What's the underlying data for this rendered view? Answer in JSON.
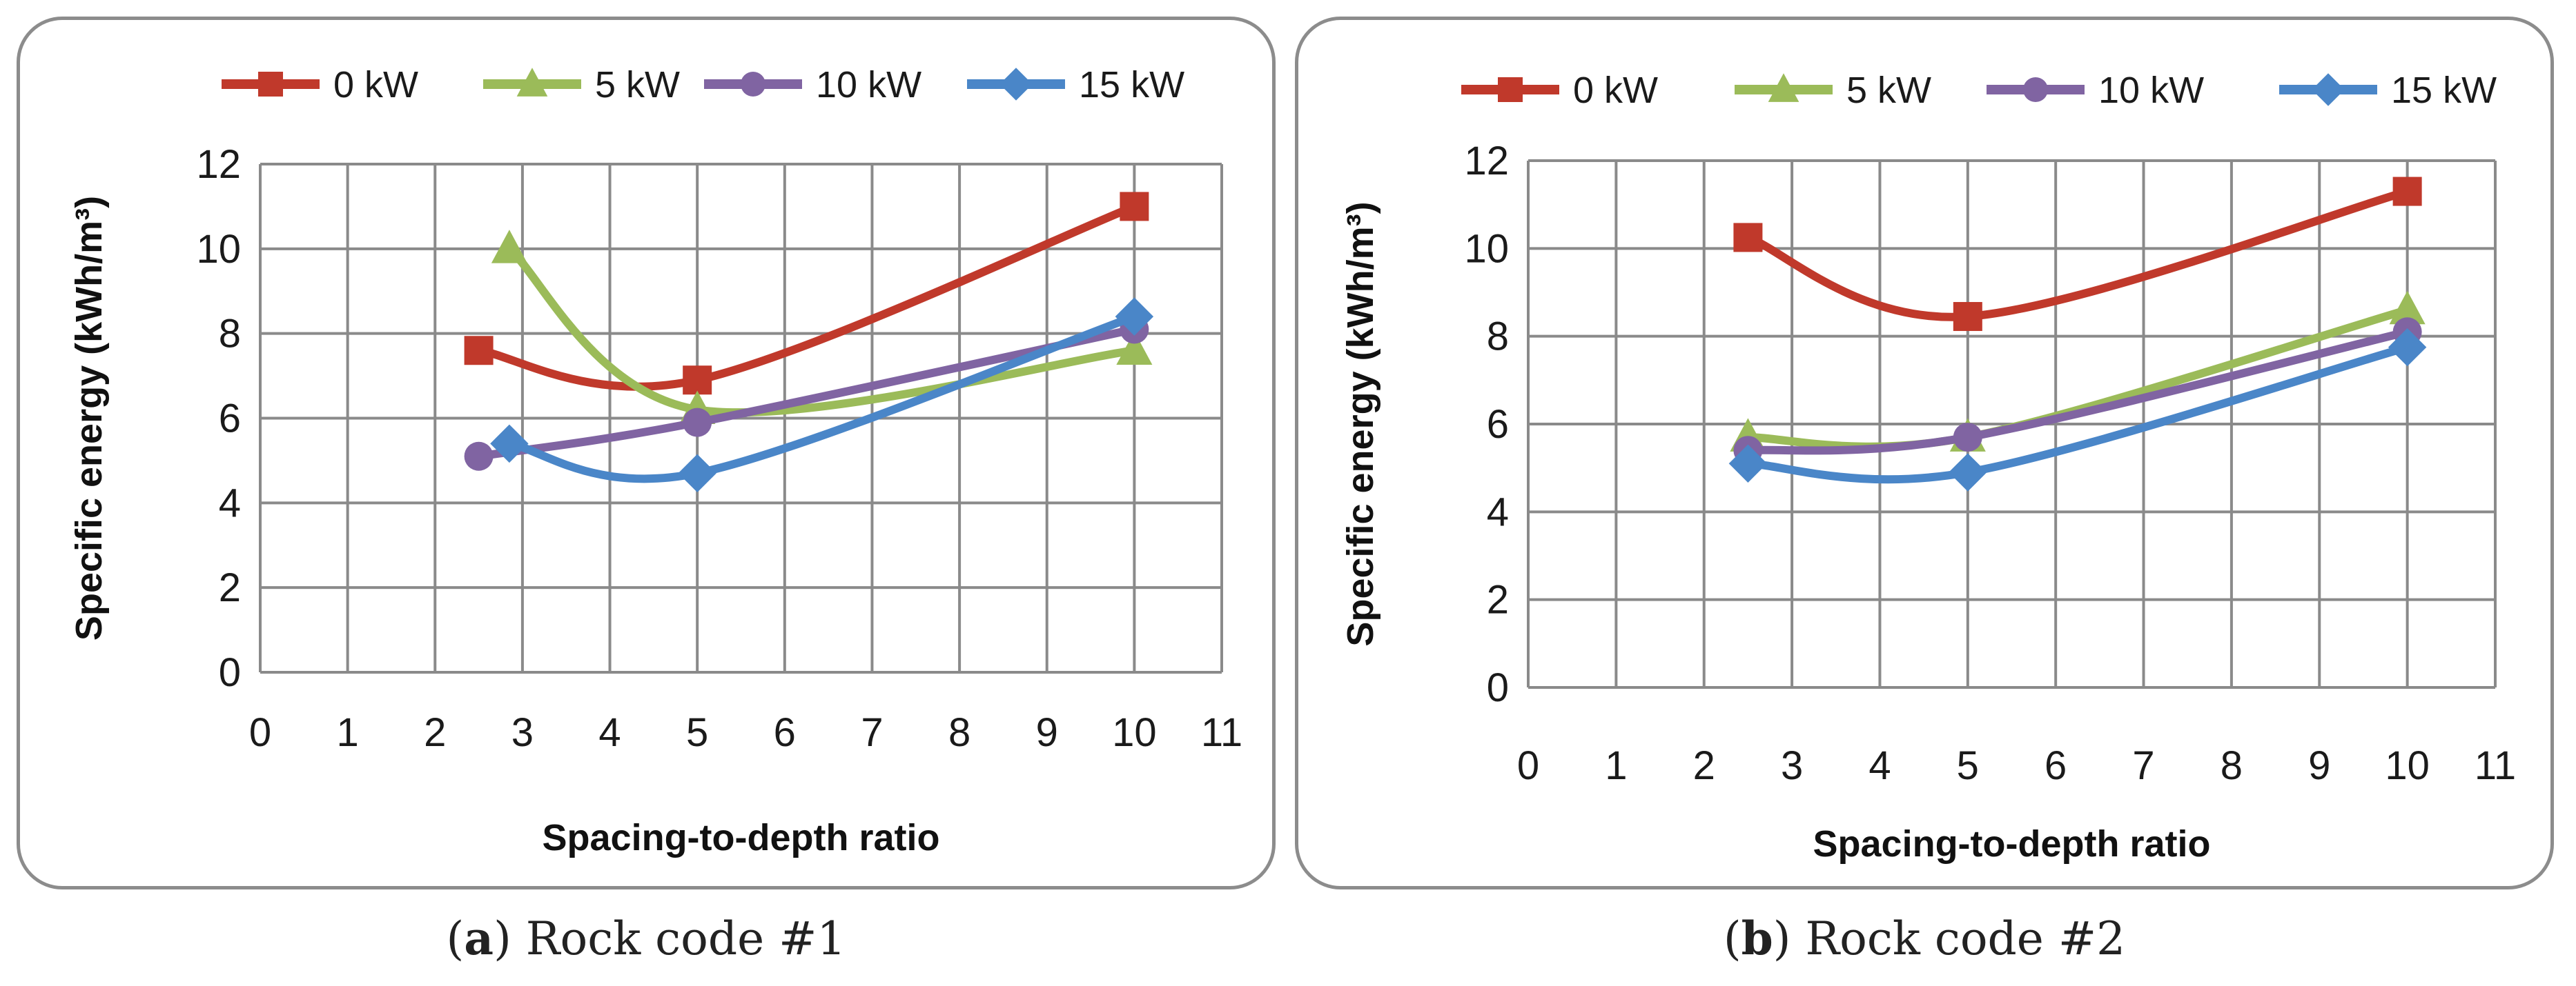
{
  "chart_data": [
    {
      "type": "line",
      "panel_letter": "a",
      "caption": "Rock code #1",
      "xlabel": "Spacing-to-depth ratio",
      "ylabel": "Specific energy (kWh/m³)",
      "xlim": [
        0,
        11
      ],
      "ylim": [
        0,
        12
      ],
      "x_ticks": [
        "0",
        "1",
        "2",
        "3",
        "4",
        "5",
        "6",
        "7",
        "8",
        "9",
        "10",
        "11"
      ],
      "y_ticks": [
        "0",
        "2",
        "4",
        "6",
        "8",
        "10",
        "12"
      ],
      "grid": true,
      "legend_position": "top",
      "series": [
        {
          "name": "0 kW",
          "color": "#c0392b",
          "marker": "square",
          "x": [
            2.5,
            5,
            10
          ],
          "y": [
            7.6,
            6.9,
            11.0
          ]
        },
        {
          "name": "5 kW",
          "color": "#9bbb59",
          "marker": "triangle",
          "x": [
            2.85,
            5,
            10
          ],
          "y": [
            10.0,
            6.2,
            7.6
          ]
        },
        {
          "name": "10 kW",
          "color": "#8064a2",
          "marker": "circle",
          "x": [
            2.5,
            5,
            10
          ],
          "y": [
            5.1,
            5.9,
            8.1
          ]
        },
        {
          "name": "15 kW",
          "color": "#4a86c8",
          "marker": "diamond",
          "x": [
            2.85,
            5,
            10
          ],
          "y": [
            5.4,
            4.7,
            8.4
          ]
        }
      ]
    },
    {
      "type": "line",
      "panel_letter": "b",
      "caption": "Rock code #2",
      "xlabel": "Spacing-to-depth ratio",
      "ylabel": "Specific energy (kWh/m³)",
      "xlim": [
        0,
        11
      ],
      "ylim": [
        0,
        12
      ],
      "x_ticks": [
        "0",
        "1",
        "2",
        "3",
        "4",
        "5",
        "6",
        "7",
        "8",
        "9",
        "10",
        "11"
      ],
      "y_ticks": [
        "0",
        "2",
        "4",
        "6",
        "8",
        "10",
        "12"
      ],
      "grid": true,
      "legend_position": "top",
      "series": [
        {
          "name": "0 kW",
          "color": "#c0392b",
          "marker": "square",
          "x": [
            2.5,
            5,
            10
          ],
          "y": [
            10.25,
            8.45,
            11.3
          ]
        },
        {
          "name": "5 kW",
          "color": "#9bbb59",
          "marker": "triangle",
          "x": [
            2.5,
            5,
            10
          ],
          "y": [
            5.7,
            5.7,
            8.6
          ]
        },
        {
          "name": "10 kW",
          "color": "#8064a2",
          "marker": "circle",
          "x": [
            2.5,
            5,
            10
          ],
          "y": [
            5.4,
            5.7,
            8.1
          ]
        },
        {
          "name": "15 kW",
          "color": "#4a86c8",
          "marker": "diamond",
          "x": [
            2.5,
            5,
            10
          ],
          "y": [
            5.1,
            4.9,
            7.75
          ]
        }
      ]
    }
  ]
}
